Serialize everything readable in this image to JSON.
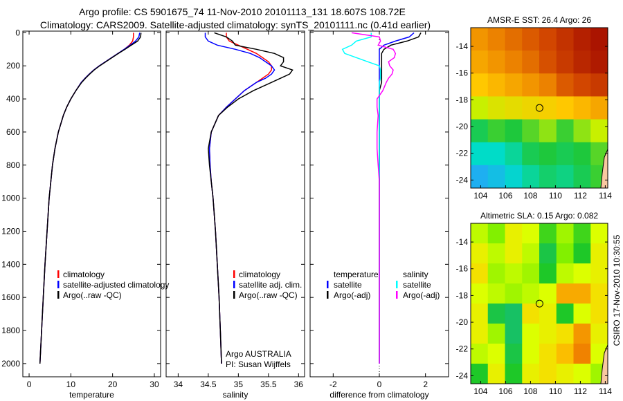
{
  "title_line1": "Argo profile: CS 5901675_74 11-Nov-2010 20101113_131 18.607S 108.72E",
  "title_line2": "Climatology: CARS2009. Satellite-adjusted climatology: synTS_20101111.nc (0.41d earlier)",
  "side_stamp": "CSIRO 17-Nov-2010 10:30:55",
  "colors": {
    "climatology": "#ff0000",
    "satellite": "#0000ff",
    "argo": "#000000",
    "sal_satellite": "#00ffff",
    "sal_argo": "#ff00ff",
    "land": "#f8c8a0"
  },
  "chart_data": [
    {
      "type": "line",
      "id": "temperature",
      "xlabel": "temperature",
      "ylabel": "depth",
      "xlim": [
        -1.5,
        31.5
      ],
      "ylim": [
        2080,
        -10
      ],
      "xticks": [
        0,
        10,
        20,
        30
      ],
      "xtick_labels": [
        "0",
        "10",
        "20",
        "30"
      ],
      "yticks": [
        0,
        200,
        400,
        600,
        800,
        1000,
        1200,
        1400,
        1600,
        1800,
        2000
      ],
      "ytick_labels": [
        "0",
        "200",
        "400",
        "600",
        "800",
        "1000",
        "1200",
        "1400",
        "1600",
        "1800",
        "2000"
      ],
      "depth": [
        0,
        25,
        50,
        75,
        100,
        125,
        150,
        175,
        200,
        225,
        250,
        275,
        300,
        350,
        400,
        450,
        500,
        600,
        700,
        800,
        900,
        1000,
        1200,
        1400,
        1600,
        1800,
        2000
      ],
      "series": [
        {
          "name": "climatology",
          "color": "#ff0000",
          "values": [
            25.0,
            25.0,
            24.8,
            24.0,
            22.8,
            21.3,
            19.8,
            18.3,
            16.8,
            15.5,
            14.4,
            13.4,
            12.5,
            11.2,
            10.0,
            9.0,
            8.2,
            7.0,
            6.2,
            5.6,
            5.2,
            4.8,
            4.3,
            3.8,
            3.4,
            3.0,
            2.6
          ]
        },
        {
          "name": "satellite-adjusted climatology",
          "color": "#0000ff",
          "values": [
            26.5,
            26.3,
            25.5,
            24.2,
            22.8,
            21.3,
            19.8,
            18.3,
            16.8,
            15.5,
            14.4,
            13.4,
            12.5,
            11.2,
            10.0,
            9.0,
            8.2,
            7.0,
            6.2,
            5.6,
            5.2,
            4.8,
            4.3,
            3.8,
            3.4,
            3.0,
            2.6
          ]
        },
        {
          "name": "Argo(..raw -QC)",
          "color": "#000000",
          "values": [
            26.8,
            26.7,
            26.0,
            24.5,
            23.0,
            21.4,
            19.9,
            18.4,
            16.9,
            15.6,
            14.5,
            13.5,
            12.6,
            11.2,
            10.0,
            9.0,
            8.2,
            7.0,
            6.2,
            5.6,
            5.2,
            4.8,
            4.3,
            3.8,
            3.4,
            3.0,
            2.6
          ]
        }
      ],
      "legend": {
        "position": "lower-right",
        "entries": [
          "climatology",
          "satellite-adjusted climatology",
          "Argo(..raw -QC)"
        ]
      }
    },
    {
      "type": "line",
      "id": "salinity",
      "xlabel": "salinity",
      "xlim": [
        33.8,
        36.1
      ],
      "ylim": [
        2080,
        -10
      ],
      "xticks": [
        34,
        34.5,
        35,
        35.5,
        36
      ],
      "xtick_labels": [
        "34",
        "34.5",
        "35",
        "35.5",
        "36"
      ],
      "depth": [
        0,
        25,
        50,
        75,
        100,
        125,
        150,
        175,
        200,
        225,
        250,
        275,
        300,
        350,
        400,
        450,
        500,
        600,
        700,
        800,
        900,
        1000,
        1200,
        1400,
        1600,
        1800,
        2000
      ],
      "series": [
        {
          "name": "climatology",
          "color": "#ff0000",
          "values": [
            34.8,
            34.8,
            34.85,
            35.0,
            35.15,
            35.3,
            35.4,
            35.5,
            35.55,
            35.55,
            35.5,
            35.4,
            35.3,
            35.1,
            34.95,
            34.8,
            34.67,
            34.55,
            34.52,
            34.53,
            34.55,
            34.58,
            34.62,
            34.65,
            34.68,
            34.7,
            34.72
          ]
        },
        {
          "name": "satellite adj. clim.",
          "color": "#0000ff",
          "values": [
            34.45,
            34.45,
            34.5,
            34.65,
            34.95,
            35.2,
            35.35,
            35.45,
            35.55,
            35.6,
            35.55,
            35.45,
            35.3,
            35.1,
            34.95,
            34.8,
            34.67,
            34.55,
            34.52,
            34.53,
            34.55,
            34.58,
            34.62,
            34.65,
            34.68,
            34.7,
            34.72
          ]
        },
        {
          "name": "Argo(..raw -QC)",
          "color": "#000000",
          "values": [
            34.6,
            34.8,
            34.9,
            34.95,
            35.3,
            35.6,
            35.75,
            35.75,
            35.7,
            35.9,
            35.85,
            35.7,
            35.55,
            35.25,
            35.0,
            34.82,
            34.67,
            34.55,
            34.5,
            34.52,
            34.55,
            34.58,
            34.62,
            34.65,
            34.68,
            34.7,
            34.72
          ]
        }
      ],
      "legend": {
        "position": "lower-right",
        "entries": [
          "climatology",
          "satellite adj. clim.",
          "Argo(..raw -QC)"
        ]
      },
      "annotations": [
        "Argo AUSTRALIA",
        "PI: Susan Wijffels"
      ]
    },
    {
      "type": "line",
      "id": "difference",
      "xlabel": "difference from climatology",
      "xlim": [
        -3.0,
        3.0
      ],
      "ylim": [
        2080,
        -10
      ],
      "xticks": [
        -2,
        0,
        2
      ],
      "xtick_labels": [
        "-2",
        "0",
        "2"
      ],
      "depth": [
        0,
        25,
        50,
        75,
        100,
        125,
        150,
        175,
        200,
        225,
        250,
        275,
        300,
        350,
        400,
        450,
        500,
        600,
        700,
        800,
        900,
        1000,
        1200,
        1400,
        1600,
        1800,
        2000
      ],
      "series": [
        {
          "name": "temperature satellite",
          "color": "#0000ff",
          "values": [
            1.5,
            1.3,
            0.7,
            0.2,
            0,
            0,
            0,
            0,
            0,
            0,
            0,
            0,
            0,
            0,
            0,
            0,
            0,
            0,
            0,
            0,
            0,
            0,
            0,
            0,
            0,
            0,
            0
          ]
        },
        {
          "name": "temperature Argo(-adj)",
          "color": "#000000",
          "values": [
            1.8,
            1.7,
            1.2,
            0.5,
            0.2,
            0.1,
            0.1,
            0.1,
            0.1,
            0.1,
            0.1,
            0.1,
            0.1,
            0,
            0,
            0,
            0,
            0,
            0,
            0,
            0,
            0,
            0,
            0,
            0,
            0,
            0
          ]
        },
        {
          "name": "salinity satellite",
          "color": "#00ffff",
          "values": [
            -0.35,
            -0.35,
            -1.0,
            -1.2,
            -1.6,
            -1.5,
            -1.0,
            -0.5,
            0,
            0.05,
            0.05,
            0.05,
            0,
            0,
            0,
            0,
            0,
            0,
            0,
            0,
            0,
            0,
            0,
            0,
            0,
            0,
            0
          ]
        },
        {
          "name": "salinity Argo(-adj)",
          "color": "#ff00ff",
          "values": [
            -1.2,
            0,
            0.05,
            -0.05,
            0.6,
            0.7,
            0.65,
            0.4,
            0.45,
            0.6,
            0.55,
            0.4,
            0.3,
            0.15,
            -0.1,
            -0.1,
            -0.05,
            -0.1,
            -0.1,
            -0.05,
            0,
            0,
            0,
            0,
            0,
            0,
            0
          ]
        }
      ],
      "legend": {
        "position": "lower-right",
        "headers": [
          "temperature",
          "salinity"
        ],
        "entries": [
          "satellite",
          "Argo(-adj)",
          "satellite",
          "Argo(-adj)"
        ]
      }
    },
    {
      "type": "heatmap",
      "id": "sst_map",
      "title": "AMSR-E SST: 26.4 Argo: 26",
      "xlim": [
        103.2,
        114.2
      ],
      "ylim": [
        -12.6,
        -24.6
      ],
      "xtick_labels": [
        "104",
        "106",
        "108",
        "110",
        "112",
        "114"
      ],
      "xticks": [
        104,
        106,
        108,
        110,
        112,
        114
      ],
      "ytick_labels": [
        "-14",
        "-16",
        "-18",
        "-20",
        "-22",
        "-24"
      ],
      "yticks": [
        -14,
        -16,
        -18,
        -20,
        -22,
        -24
      ],
      "marker": {
        "lon": 108.72,
        "lat": -18.607
      },
      "values": [
        [
          27.2,
          27.4,
          27.6,
          27.8,
          28.0,
          28.3,
          28.6,
          28.8
        ],
        [
          27.0,
          27.2,
          27.4,
          27.6,
          27.9,
          28.2,
          28.5,
          28.7
        ],
        [
          26.6,
          26.8,
          27.0,
          27.2,
          27.4,
          27.8,
          28.0,
          28.2
        ],
        [
          26.0,
          26.2,
          26.3,
          26.4,
          26.5,
          26.6,
          26.8,
          27.0
        ],
        [
          25.3,
          25.5,
          25.4,
          25.6,
          25.8,
          25.5,
          25.8,
          26.0
        ],
        [
          24.8,
          24.8,
          25.0,
          25.3,
          25.4,
          25.3,
          25.4,
          25.6
        ],
        [
          24.2,
          24.4,
          24.7,
          25.0,
          25.2,
          25.1,
          25.3,
          25.5
        ]
      ]
    },
    {
      "type": "heatmap",
      "id": "sla_map",
      "title": "Altimetric SLA: 0.15 Argo: 0.082",
      "xlim": [
        103.2,
        114.2
      ],
      "ylim": [
        -12.6,
        -24.6
      ],
      "xtick_labels": [
        "104",
        "106",
        "108",
        "110",
        "112",
        "114"
      ],
      "xticks": [
        104,
        106,
        108,
        110,
        112,
        114
      ],
      "ytick_labels": [
        "-14",
        "-16",
        "-18",
        "-20",
        "-22",
        "-24"
      ],
      "yticks": [
        -14,
        -16,
        -18,
        -20,
        -22,
        -24
      ],
      "marker": {
        "lon": 108.72,
        "lat": -18.607
      },
      "values": [
        [
          0.13,
          0.11,
          0.15,
          0.14,
          0.09,
          0.12,
          0.09,
          0.14
        ],
        [
          0.15,
          0.13,
          0.15,
          0.13,
          0.07,
          0.11,
          0.08,
          0.15
        ],
        [
          0.16,
          0.12,
          0.13,
          0.12,
          0.08,
          0.13,
          0.14,
          0.15
        ],
        [
          0.14,
          0.13,
          0.12,
          0.13,
          0.14,
          0.19,
          0.19,
          0.16
        ],
        [
          0.15,
          0.07,
          0.06,
          0.16,
          0.15,
          0.08,
          0.14,
          0.16
        ],
        [
          0.15,
          0.12,
          0.06,
          0.14,
          0.15,
          0.16,
          0.2,
          0.15
        ],
        [
          0.13,
          0.14,
          0.07,
          0.14,
          0.16,
          0.18,
          0.21,
          0.14
        ],
        [
          0.08,
          0.15,
          0.08,
          0.15,
          0.16,
          0.15,
          0.14,
          0.12
        ]
      ]
    }
  ]
}
